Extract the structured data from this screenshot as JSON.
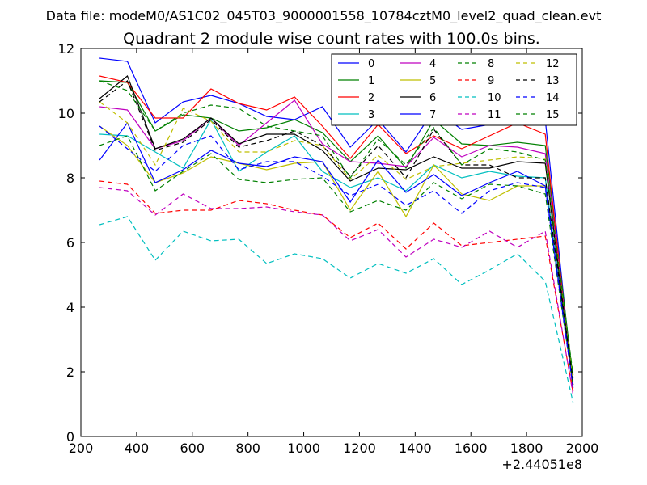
{
  "chart_data": {
    "type": "line",
    "suptitle": "Data file: modeM0/AS1C02_045T03_9000001558_10784cztM0_level2_quad_clean.evt",
    "title": "Quadrant 2 module wise count rates with 100.0s bins.",
    "xlabel": "",
    "ylabel": "",
    "x_offset_label": "+2.44051e8",
    "xlim": [
      200,
      2000
    ],
    "ylim": [
      0,
      12
    ],
    "xticks": [
      200,
      400,
      600,
      800,
      1000,
      1200,
      1400,
      1600,
      1800,
      2000
    ],
    "yticks": [
      0,
      2,
      4,
      6,
      8,
      10,
      12
    ],
    "legend_position": "top-right",
    "x": [
      267,
      367,
      467,
      567,
      667,
      767,
      867,
      967,
      1067,
      1167,
      1267,
      1367,
      1467,
      1567,
      1667,
      1767,
      1867,
      1967
    ],
    "series": [
      {
        "name": "0",
        "color": "#0000ff",
        "dash": "solid",
        "values": [
          11.7,
          11.6,
          9.7,
          10.35,
          10.55,
          10.3,
          9.9,
          9.8,
          10.2,
          8.95,
          9.8,
          8.8,
          10.1,
          9.5,
          9.65,
          10.2,
          9.8,
          1.5
        ]
      },
      {
        "name": "1",
        "color": "#008000",
        "dash": "solid",
        "values": [
          11.0,
          10.95,
          9.45,
          9.95,
          9.85,
          9.45,
          9.55,
          9.8,
          9.4,
          8.5,
          9.3,
          8.3,
          9.8,
          9.05,
          9.0,
          9.1,
          9.0,
          1.8
        ]
      },
      {
        "name": "2",
        "color": "#ff0000",
        "dash": "solid",
        "values": [
          11.15,
          10.95,
          9.85,
          9.85,
          10.75,
          10.3,
          10.1,
          10.5,
          9.6,
          8.6,
          9.65,
          8.75,
          9.3,
          8.9,
          9.3,
          9.7,
          9.35,
          1.4
        ]
      },
      {
        "name": "3",
        "color": "#00bfbf",
        "dash": "solid",
        "values": [
          9.35,
          9.3,
          8.8,
          8.3,
          9.8,
          8.2,
          8.8,
          9.3,
          8.2,
          7.7,
          8.0,
          7.6,
          8.4,
          8.0,
          8.2,
          8.05,
          8.0,
          1.6
        ]
      },
      {
        "name": "4",
        "color": "#bf00bf",
        "dash": "solid",
        "values": [
          10.2,
          10.1,
          8.9,
          9.15,
          9.85,
          9.0,
          9.7,
          10.4,
          9.05,
          8.5,
          8.45,
          8.35,
          9.25,
          8.65,
          9.0,
          8.95,
          8.75,
          1.6
        ]
      },
      {
        "name": "5",
        "color": "#bfbf00",
        "dash": "solid",
        "values": [
          9.6,
          9.0,
          7.85,
          8.15,
          8.65,
          8.45,
          8.25,
          8.45,
          8.5,
          7.0,
          8.2,
          6.8,
          8.4,
          7.5,
          7.3,
          7.75,
          7.75,
          1.6
        ]
      },
      {
        "name": "6",
        "color": "#000000",
        "dash": "solid",
        "values": [
          10.45,
          11.15,
          8.9,
          9.2,
          9.85,
          9.05,
          9.35,
          9.35,
          8.85,
          7.9,
          8.3,
          8.25,
          8.65,
          8.3,
          8.3,
          8.5,
          8.45,
          1.6
        ]
      },
      {
        "name": "7",
        "color": "#0000ff",
        "dash": "solid",
        "values": [
          8.55,
          9.7,
          7.85,
          8.25,
          8.85,
          8.45,
          8.35,
          8.65,
          8.5,
          7.25,
          8.55,
          7.55,
          8.1,
          7.45,
          7.85,
          8.2,
          7.75,
          1.55
        ]
      },
      {
        "name": "8",
        "color": "#008000",
        "dash": "dashed",
        "values": [
          9.0,
          9.3,
          7.6,
          8.2,
          8.75,
          7.95,
          7.85,
          7.95,
          8.0,
          6.95,
          7.3,
          7.0,
          7.85,
          7.35,
          7.8,
          7.75,
          7.5,
          1.55
        ]
      },
      {
        "name": "9",
        "color": "#ff0000",
        "dash": "dashed",
        "values": [
          7.9,
          7.8,
          6.9,
          7.0,
          7.0,
          7.3,
          7.2,
          7.0,
          6.85,
          6.15,
          6.6,
          5.8,
          6.6,
          5.9,
          6.0,
          6.1,
          6.2,
          1.35
        ]
      },
      {
        "name": "10",
        "color": "#00bfbf",
        "dash": "dashed",
        "values": [
          6.55,
          6.8,
          5.45,
          6.35,
          6.05,
          6.1,
          5.35,
          5.65,
          5.5,
          4.9,
          5.35,
          5.05,
          5.5,
          4.7,
          5.15,
          5.65,
          4.8,
          1.05
        ]
      },
      {
        "name": "11",
        "color": "#bf00bf",
        "dash": "dashed",
        "values": [
          7.7,
          7.6,
          6.85,
          7.5,
          7.05,
          7.05,
          7.1,
          6.95,
          6.85,
          6.05,
          6.4,
          5.55,
          6.1,
          5.85,
          6.35,
          5.85,
          6.35,
          1.3
        ]
      },
      {
        "name": "12",
        "color": "#bfbf00",
        "dash": "dashed",
        "values": [
          10.35,
          9.7,
          8.4,
          10.15,
          9.75,
          8.8,
          8.8,
          9.15,
          9.0,
          7.95,
          8.7,
          7.95,
          8.35,
          8.45,
          8.55,
          8.65,
          8.6,
          1.75
        ]
      },
      {
        "name": "13",
        "color": "#000000",
        "dash": "dashed",
        "values": [
          10.35,
          11.0,
          8.85,
          9.1,
          9.8,
          8.95,
          9.15,
          9.45,
          9.0,
          8.05,
          9.0,
          8.0,
          9.5,
          8.4,
          8.4,
          8.0,
          8.0,
          1.7
        ]
      },
      {
        "name": "14",
        "color": "#0000ff",
        "dash": "dashed",
        "values": [
          9.6,
          8.9,
          8.2,
          9.0,
          9.3,
          8.25,
          8.5,
          8.5,
          8.05,
          7.45,
          7.8,
          7.15,
          7.6,
          6.9,
          7.6,
          7.85,
          7.7,
          1.5
        ]
      },
      {
        "name": "15",
        "color": "#008000",
        "dash": "dashed",
        "values": [
          11.0,
          10.7,
          9.45,
          10.0,
          10.25,
          10.15,
          9.6,
          9.45,
          9.3,
          8.0,
          9.2,
          8.4,
          9.55,
          8.4,
          8.9,
          8.8,
          8.55,
          1.9
        ]
      }
    ]
  }
}
